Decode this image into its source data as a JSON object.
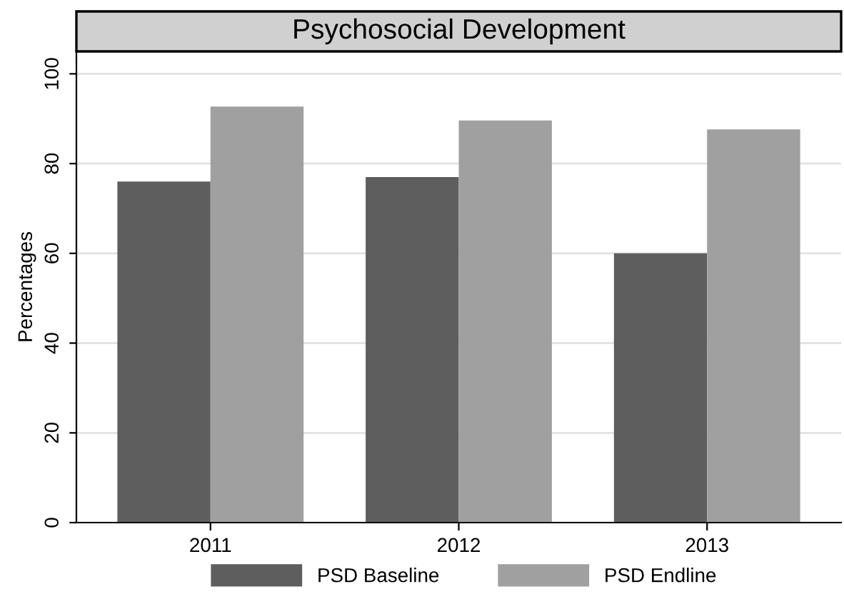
{
  "chart_data": {
    "type": "bar",
    "title": "Psychosocial Development",
    "ylabel": "Percentages",
    "categories": [
      "2011",
      "2012",
      "2013"
    ],
    "series": [
      {
        "name": "PSD Baseline",
        "color": "#5e5e5e",
        "values": [
          76,
          77,
          60
        ]
      },
      {
        "name": "PSD Endline",
        "color": "#a0a0a0",
        "values": [
          92.7,
          89.6,
          87.6
        ]
      }
    ],
    "ylim": [
      0,
      105
    ],
    "yticks": [
      0,
      20,
      40,
      60,
      80,
      100
    ],
    "grid": "y",
    "legend": "bottom"
  }
}
